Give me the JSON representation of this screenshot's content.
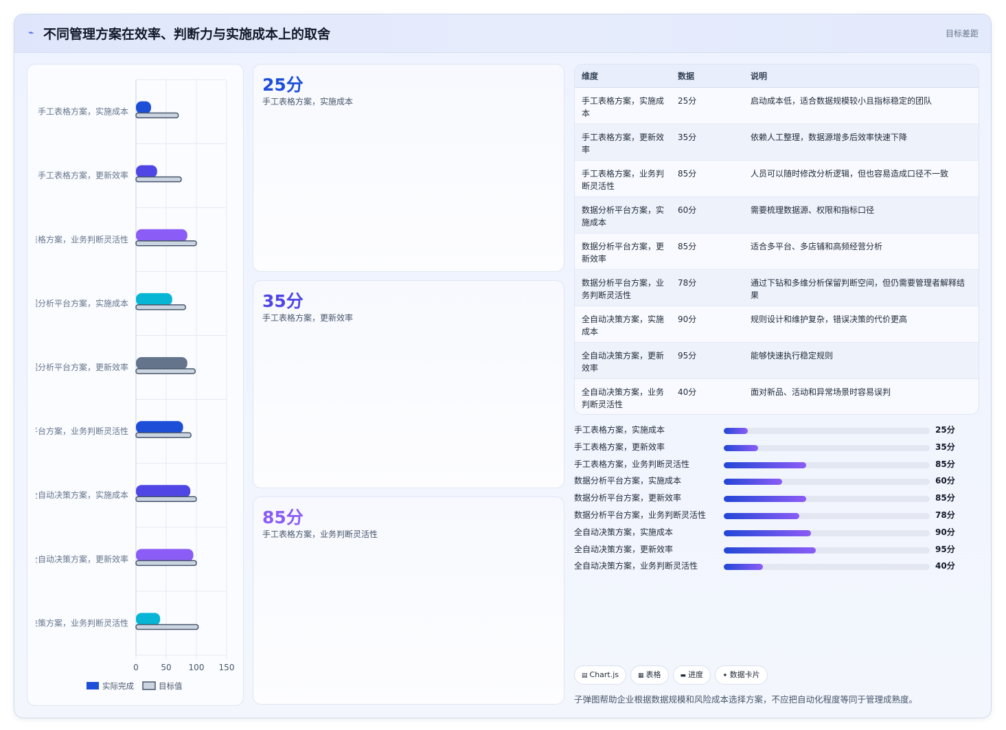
{
  "header": {
    "logo_icon": "⌁",
    "title": "不同管理方案在效率、判断力与实施成本上的取舍",
    "tag": "目标差距"
  },
  "chart_data": {
    "type": "bar",
    "orientation": "horizontal",
    "categories": [
      "手工表格方案，实施成本",
      "手工表格方案，更新效率",
      "手工表格方案，业务判断灵活性",
      "数据分析平台方案，实施成本",
      "数据分析平台方案，更新效率",
      "数据分析平台方案，业务判断灵活性",
      "全自动决策方案，实施成本",
      "全自动决策方案，更新效率",
      "全自动决策方案，业务判断灵活性"
    ],
    "series": [
      {
        "name": "实际完成",
        "values": [
          25,
          35,
          85,
          60,
          85,
          78,
          90,
          95,
          40
        ],
        "colors": [
          "#1d4ed8",
          "#4f46e5",
          "#8b5cf6",
          "#06b6d4",
          "#64748b",
          "#1d4ed8",
          "#4f46e5",
          "#8b5cf6",
          "#06b6d4"
        ]
      },
      {
        "name": "目标值",
        "values": [
          70,
          75,
          100,
          82,
          98,
          91,
          100,
          100,
          103
        ],
        "color": "#cbd5e1"
      }
    ],
    "xlim": [
      0,
      150
    ],
    "xticks": [
      "0",
      "50",
      "100",
      "150"
    ],
    "grid": true,
    "legend": "bottom"
  },
  "kpis": [
    {
      "value": "25分",
      "label": "手工表格方案，实施成本",
      "color": "#1d4ed8"
    },
    {
      "value": "35分",
      "label": "手工表格方案，更新效率",
      "color": "#4f46e5"
    },
    {
      "value": "85分",
      "label": "手工表格方案，业务判断灵活性",
      "color": "#8b5cf6"
    }
  ],
  "table": {
    "headers": [
      "维度",
      "数据",
      "说明"
    ],
    "rows": [
      [
        "手工表格方案，实施成本",
        "25分",
        "启动成本低，适合数据规模较小且指标稳定的团队"
      ],
      [
        "手工表格方案，更新效率",
        "35分",
        "依赖人工整理，数据源增多后效率快速下降"
      ],
      [
        "手工表格方案，业务判断灵活性",
        "85分",
        "人员可以随时修改分析逻辑，但也容易造成口径不一致"
      ],
      [
        "数据分析平台方案，实施成本",
        "60分",
        "需要梳理数据源、权限和指标口径"
      ],
      [
        "数据分析平台方案，更新效率",
        "85分",
        "适合多平台、多店铺和高频经营分析"
      ],
      [
        "数据分析平台方案，业务判断灵活性",
        "78分",
        "通过下钻和多维分析保留判断空间，但仍需要管理者解释结果"
      ],
      [
        "全自动决策方案，实施成本",
        "90分",
        "规则设计和维护复杂，错误决策的代价更高"
      ],
      [
        "全自动决策方案，更新效率",
        "95分",
        "能够快速执行稳定规则"
      ],
      [
        "全自动决策方案，业务判断灵活性",
        "40分",
        "面对新品、活动和异常场景时容易误判"
      ]
    ]
  },
  "progress": [
    {
      "label": "手工表格方案，实施成本",
      "value": 25,
      "text": "25分"
    },
    {
      "label": "手工表格方案，更新效率",
      "value": 35,
      "text": "35分"
    },
    {
      "label": "手工表格方案，业务判断灵活性",
      "value": 85,
      "text": "85分"
    },
    {
      "label": "数据分析平台方案，实施成本",
      "value": 60,
      "text": "60分"
    },
    {
      "label": "数据分析平台方案，更新效率",
      "value": 85,
      "text": "85分"
    },
    {
      "label": "数据分析平台方案，业务判断灵活性",
      "value": 78,
      "text": "78分"
    },
    {
      "label": "全自动决策方案，实施成本",
      "value": 90,
      "text": "90分"
    },
    {
      "label": "全自动决策方案，更新效率",
      "value": 95,
      "text": "95分"
    },
    {
      "label": "全自动决策方案，业务判断灵活性",
      "value": 40,
      "text": "40分"
    }
  ],
  "progress_max": 212,
  "chips": [
    {
      "icon": "▤",
      "label": "Chart.js"
    },
    {
      "icon": "▦",
      "label": "表格"
    },
    {
      "icon": "▬",
      "label": "进度"
    },
    {
      "icon": "✦",
      "label": "数据卡片"
    }
  ],
  "footnote": "子弹图帮助企业根据数据规模和风险成本选择方案，不应把自动化程度等同于管理成熟度。"
}
